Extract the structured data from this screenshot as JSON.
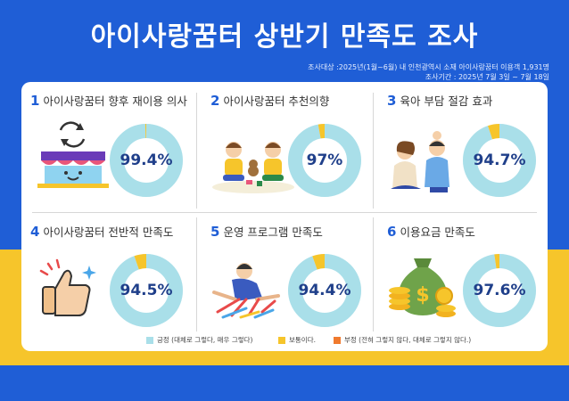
{
  "title": "아이사랑꿈터 상반기 만족도 조사",
  "meta": {
    "line1": "조사대상 :2025년(1월~6월) 내 인천광역시 소재  아이사랑꿈터 이용객 1,931명",
    "line2": "조사기간 : 2025년 7월 3일 ~ 7월 18일"
  },
  "colors": {
    "background": "#1f5ed6",
    "band": "#f6c52b",
    "positive": "#a9dfe9",
    "neutral": "#f6c52b",
    "negative": "#f07a2e",
    "title_number": "#1f5ed6"
  },
  "legend": [
    {
      "label": "긍정 (대체로 그렇다, 매우 그렇다)",
      "color": "#a9dfe9"
    },
    {
      "label": "보통이다.",
      "color": "#f6c52b"
    },
    {
      "label": "부정 (전혀 그렇지 않다, 대체로 그렇지 않다.)",
      "color": "#f07a2e"
    }
  ],
  "chart_data": [
    {
      "type": "pie",
      "number": "1",
      "title": "아이사랑꿈터 향후 재이용 의사",
      "value_label": "99.4%",
      "positive": 99.4,
      "neutral": 0.6,
      "negative": 0,
      "icon": "store-icon"
    },
    {
      "type": "pie",
      "number": "2",
      "title": "아이사랑꿈터 추천의향",
      "value_label": "97%",
      "positive": 97,
      "neutral": 3,
      "negative": 0,
      "icon": "children-playing-icon"
    },
    {
      "type": "pie",
      "number": "3",
      "title": "육아 부담 절감 효과",
      "value_label": "94.7%",
      "positive": 94.7,
      "neutral": 5.3,
      "negative": 0,
      "icon": "family-icon"
    },
    {
      "type": "pie",
      "number": "4",
      "title": "아이사랑꿈터 전반적 만족도",
      "value_label": "94.5%",
      "positive": 94.5,
      "neutral": 5.5,
      "negative": 0,
      "icon": "thumbs-up-icon"
    },
    {
      "type": "pie",
      "number": "5",
      "title": "운영 프로그램 만족도",
      "value_label": "94.4%",
      "positive": 94.4,
      "neutral": 5.6,
      "negative": 0,
      "icon": "child-drawing-icon"
    },
    {
      "type": "pie",
      "number": "6",
      "title": "이용요금 만족도",
      "value_label": "97.6%",
      "positive": 97.6,
      "neutral": 2.4,
      "negative": 0,
      "icon": "money-bag-icon"
    }
  ]
}
